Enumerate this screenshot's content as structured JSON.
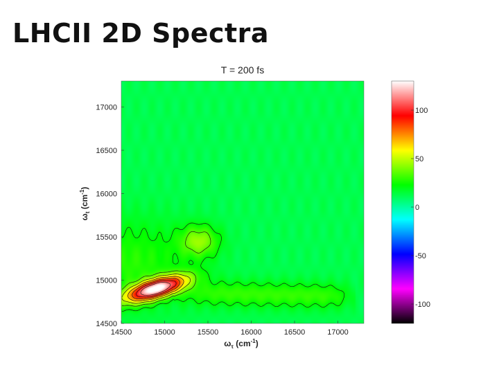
{
  "slide": {
    "title": "LHCII 2D Spectra"
  },
  "chart_data": {
    "type": "heatmap",
    "title": "T = 200 fs",
    "xlabel": {
      "main": "ω",
      "sub": "τ",
      "unit": " (cm",
      "sup": "-1",
      "close": ")"
    },
    "ylabel": {
      "main": "ω",
      "sub": "t",
      "unit": " (cm",
      "sup": "-1",
      "close": ")"
    },
    "xlim": [
      14500,
      17300
    ],
    "ylim": [
      14500,
      17300
    ],
    "x_ticks": [
      14500,
      15000,
      15500,
      16000,
      16500,
      17000
    ],
    "y_ticks": [
      14500,
      15000,
      15500,
      16000,
      16500,
      17000
    ],
    "colorbar": {
      "range": [
        -120,
        130
      ],
      "ticks": [
        100,
        50,
        0,
        -50,
        -100
      ],
      "colormap": [
        "#000000",
        "#ff00ff",
        "#0000ff",
        "#00ffff",
        "#00ff00",
        "#ffff00",
        "#ff0000",
        "#ffffff"
      ]
    },
    "background_value": 12,
    "features": [
      {
        "name": "diagonal peak",
        "x": 14900,
        "y": 14900,
        "amplitude": 118
      },
      {
        "name": "shoulder",
        "x": 15400,
        "y": 15450,
        "amplitude": 30
      },
      {
        "name": "cross-peak tail",
        "x_range": [
          15300,
          17100
        ],
        "y": 14850,
        "amplitude": 18
      }
    ],
    "grid": false
  }
}
